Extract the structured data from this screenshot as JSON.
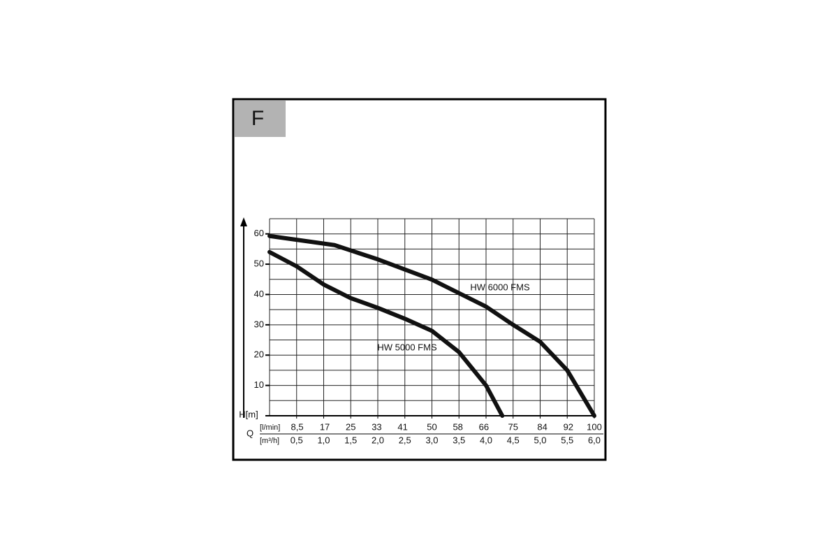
{
  "chart_data": {
    "type": "line",
    "badge": "F",
    "ylabel": "H[m]",
    "xlabel": "Q",
    "x_unit": "[m³/h]",
    "x2_unit": "[l/min]",
    "xlim": [
      0,
      6
    ],
    "xticks": [
      {
        "value": 0.5,
        "label": "0,5"
      },
      {
        "value": 1,
        "label": "1,0"
      },
      {
        "value": 1.5,
        "label": "1,5"
      },
      {
        "value": 2,
        "label": "2,0"
      },
      {
        "value": 2.5,
        "label": "2,5"
      },
      {
        "value": 3,
        "label": "3,0"
      },
      {
        "value": 3.5,
        "label": "3,5"
      },
      {
        "value": 4,
        "label": "4,0"
      },
      {
        "value": 4.5,
        "label": "4,5"
      },
      {
        "value": 5,
        "label": "5,0"
      },
      {
        "value": 5.5,
        "label": "5,5"
      },
      {
        "value": 6,
        "label": "6,0"
      }
    ],
    "x2lim": [
      0,
      100
    ],
    "x2ticks": [
      {
        "value": 8.5,
        "label": "8,5"
      },
      17,
      25,
      33,
      41,
      50,
      58,
      66,
      75,
      84,
      92,
      100
    ],
    "ylim": [
      0,
      65
    ],
    "yticks": [
      10,
      20,
      30,
      40,
      50,
      60
    ],
    "grid_step_x": 0.5,
    "grid_step_y": 5,
    "grid": true,
    "series": [
      {
        "name": "HW 6000 FMS",
        "color": "#111111",
        "x": [
          0,
          1.2,
          2,
          3,
          4,
          4.5,
          5,
          5.5,
          6
        ],
        "values": [
          59.3,
          56.3,
          51.6,
          44.9,
          36,
          30,
          24.4,
          15,
          0
        ]
      },
      {
        "name": "HW 5000 FMS",
        "color": "#111111",
        "x": [
          0,
          0.5,
          1,
          1.5,
          2,
          2.5,
          3,
          3.5,
          4,
          4.3
        ],
        "values": [
          54,
          49.3,
          43.3,
          38.8,
          35.6,
          32,
          28,
          21,
          10,
          0
        ]
      }
    ]
  }
}
